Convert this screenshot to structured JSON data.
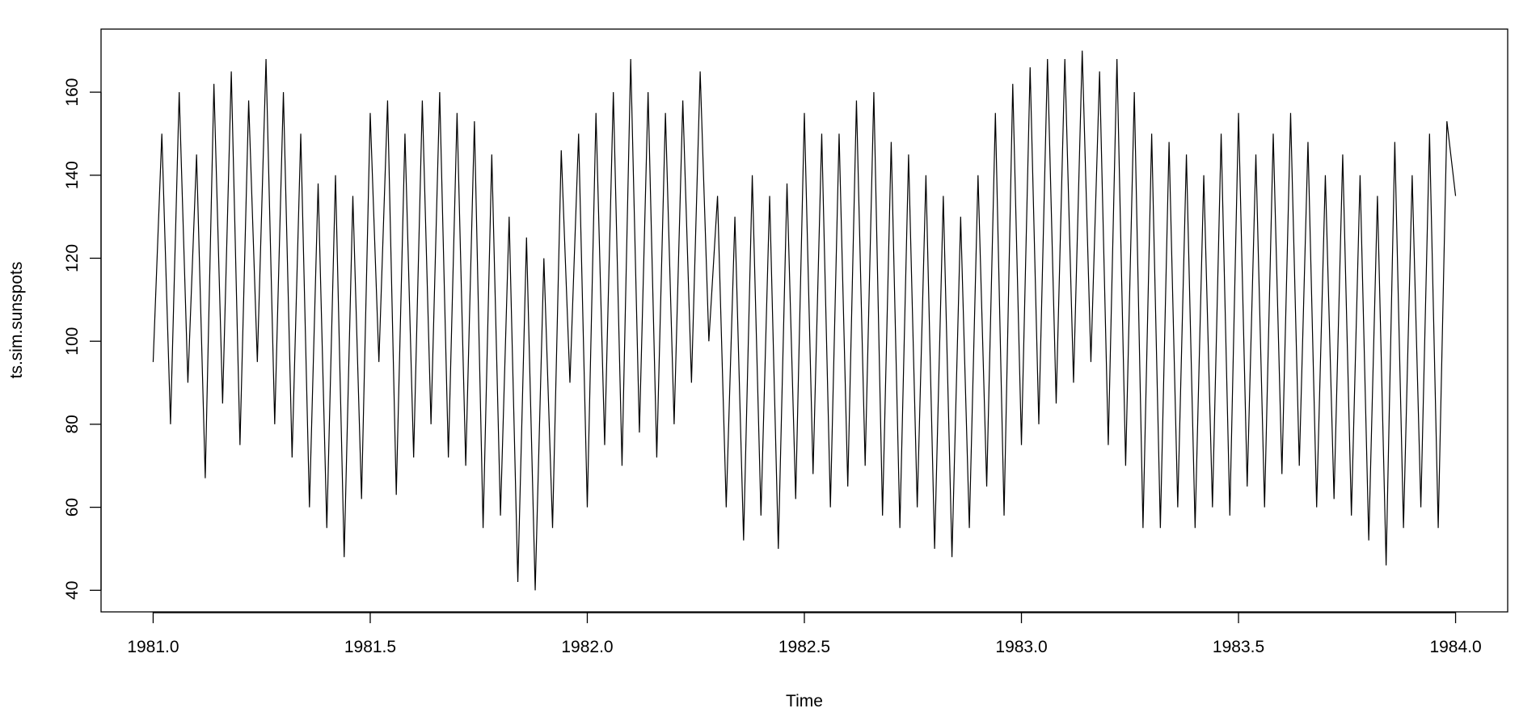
{
  "chart_data": {
    "type": "line",
    "x_label": "Time",
    "y_label": "ts.sim.sunspots",
    "x": [
      1981,
      1981.02,
      1981.04,
      1981.06,
      1981.08,
      1981.1,
      1981.12,
      1981.14,
      1981.16,
      1981.18,
      1981.2,
      1981.22,
      1981.24,
      1981.26,
      1981.28,
      1981.3,
      1981.32,
      1981.34,
      1981.36,
      1981.38,
      1981.4,
      1981.42,
      1981.44,
      1981.46,
      1981.48,
      1981.5,
      1981.52,
      1981.54,
      1981.56,
      1981.58,
      1981.6,
      1981.62,
      1981.64,
      1981.66,
      1981.68,
      1981.7,
      1981.72,
      1981.74,
      1981.76,
      1981.78,
      1981.8,
      1981.82,
      1981.84,
      1981.86,
      1981.88,
      1981.9,
      1981.92,
      1981.94,
      1981.96,
      1981.98,
      1982,
      1982.02,
      1982.04,
      1982.06,
      1982.08,
      1982.1,
      1982.12,
      1982.14,
      1982.16,
      1982.18,
      1982.2,
      1982.22,
      1982.24,
      1982.26,
      1982.28,
      1982.3,
      1982.32,
      1982.34,
      1982.36,
      1982.38,
      1982.4,
      1982.42,
      1982.44,
      1982.46,
      1982.48,
      1982.5,
      1982.52,
      1982.54,
      1982.56,
      1982.58,
      1982.6,
      1982.62,
      1982.64,
      1982.66,
      1982.68,
      1982.7,
      1982.72,
      1982.74,
      1982.76,
      1982.78,
      1982.8,
      1982.82,
      1982.84,
      1982.86,
      1982.88,
      1982.9,
      1982.92,
      1982.94,
      1982.96,
      1982.98,
      1983,
      1983.02,
      1983.04,
      1983.06,
      1983.08,
      1983.1,
      1983.12,
      1983.14,
      1983.16,
      1983.18,
      1983.2,
      1983.22,
      1983.24,
      1983.26,
      1983.28,
      1983.3,
      1983.32,
      1983.34,
      1983.36,
      1983.38,
      1983.4,
      1983.42,
      1983.44,
      1983.46,
      1983.48,
      1983.5,
      1983.52,
      1983.54,
      1983.56,
      1983.58,
      1983.6,
      1983.62,
      1983.64,
      1983.66,
      1983.68,
      1983.7,
      1983.72,
      1983.74,
      1983.76,
      1983.78,
      1983.8,
      1983.82,
      1983.84,
      1983.86,
      1983.88,
      1983.9,
      1983.92,
      1983.94,
      1983.96,
      1983.98,
      1984
    ],
    "values": [
      95,
      150,
      80,
      160,
      90,
      145,
      67,
      162,
      85,
      165,
      75,
      158,
      95,
      168,
      80,
      160,
      72,
      150,
      60,
      138,
      55,
      140,
      48,
      135,
      62,
      155,
      95,
      158,
      63,
      150,
      72,
      158,
      80,
      160,
      72,
      155,
      70,
      153,
      55,
      145,
      58,
      130,
      42,
      125,
      40,
      120,
      55,
      146,
      90,
      150,
      60,
      155,
      75,
      160,
      70,
      168,
      78,
      160,
      72,
      155,
      80,
      158,
      90,
      165,
      100,
      135,
      60,
      130,
      52,
      140,
      58,
      135,
      50,
      138,
      62,
      155,
      68,
      150,
      60,
      150,
      65,
      158,
      70,
      160,
      58,
      148,
      55,
      145,
      60,
      140,
      50,
      135,
      48,
      130,
      55,
      140,
      65,
      155,
      58,
      162,
      75,
      166,
      80,
      168,
      85,
      168,
      90,
      170,
      95,
      165,
      75,
      168,
      70,
      160,
      55,
      150,
      55,
      148,
      60,
      145,
      55,
      140,
      60,
      150,
      58,
      155,
      65,
      145,
      60,
      150,
      68,
      155,
      70,
      148,
      60,
      140,
      62,
      145,
      58,
      140,
      52,
      135,
      46,
      148,
      55,
      140,
      60,
      150,
      55,
      153,
      135
    ],
    "color": "#000000",
    "xlim": [
      1980.88,
      1984.12
    ],
    "ylim": [
      34.8,
      175.2
    ],
    "xticks": [
      {
        "value": 1981,
        "label": "1981.0"
      },
      1981.5,
      {
        "value": 1982,
        "label": "1982.0"
      },
      1982.5,
      {
        "value": 1983,
        "label": "1983.0"
      },
      1983.5,
      {
        "value": 1984,
        "label": "1984.0"
      }
    ],
    "yticks": [
      40,
      60,
      80,
      100,
      120,
      140,
      160
    ]
  }
}
